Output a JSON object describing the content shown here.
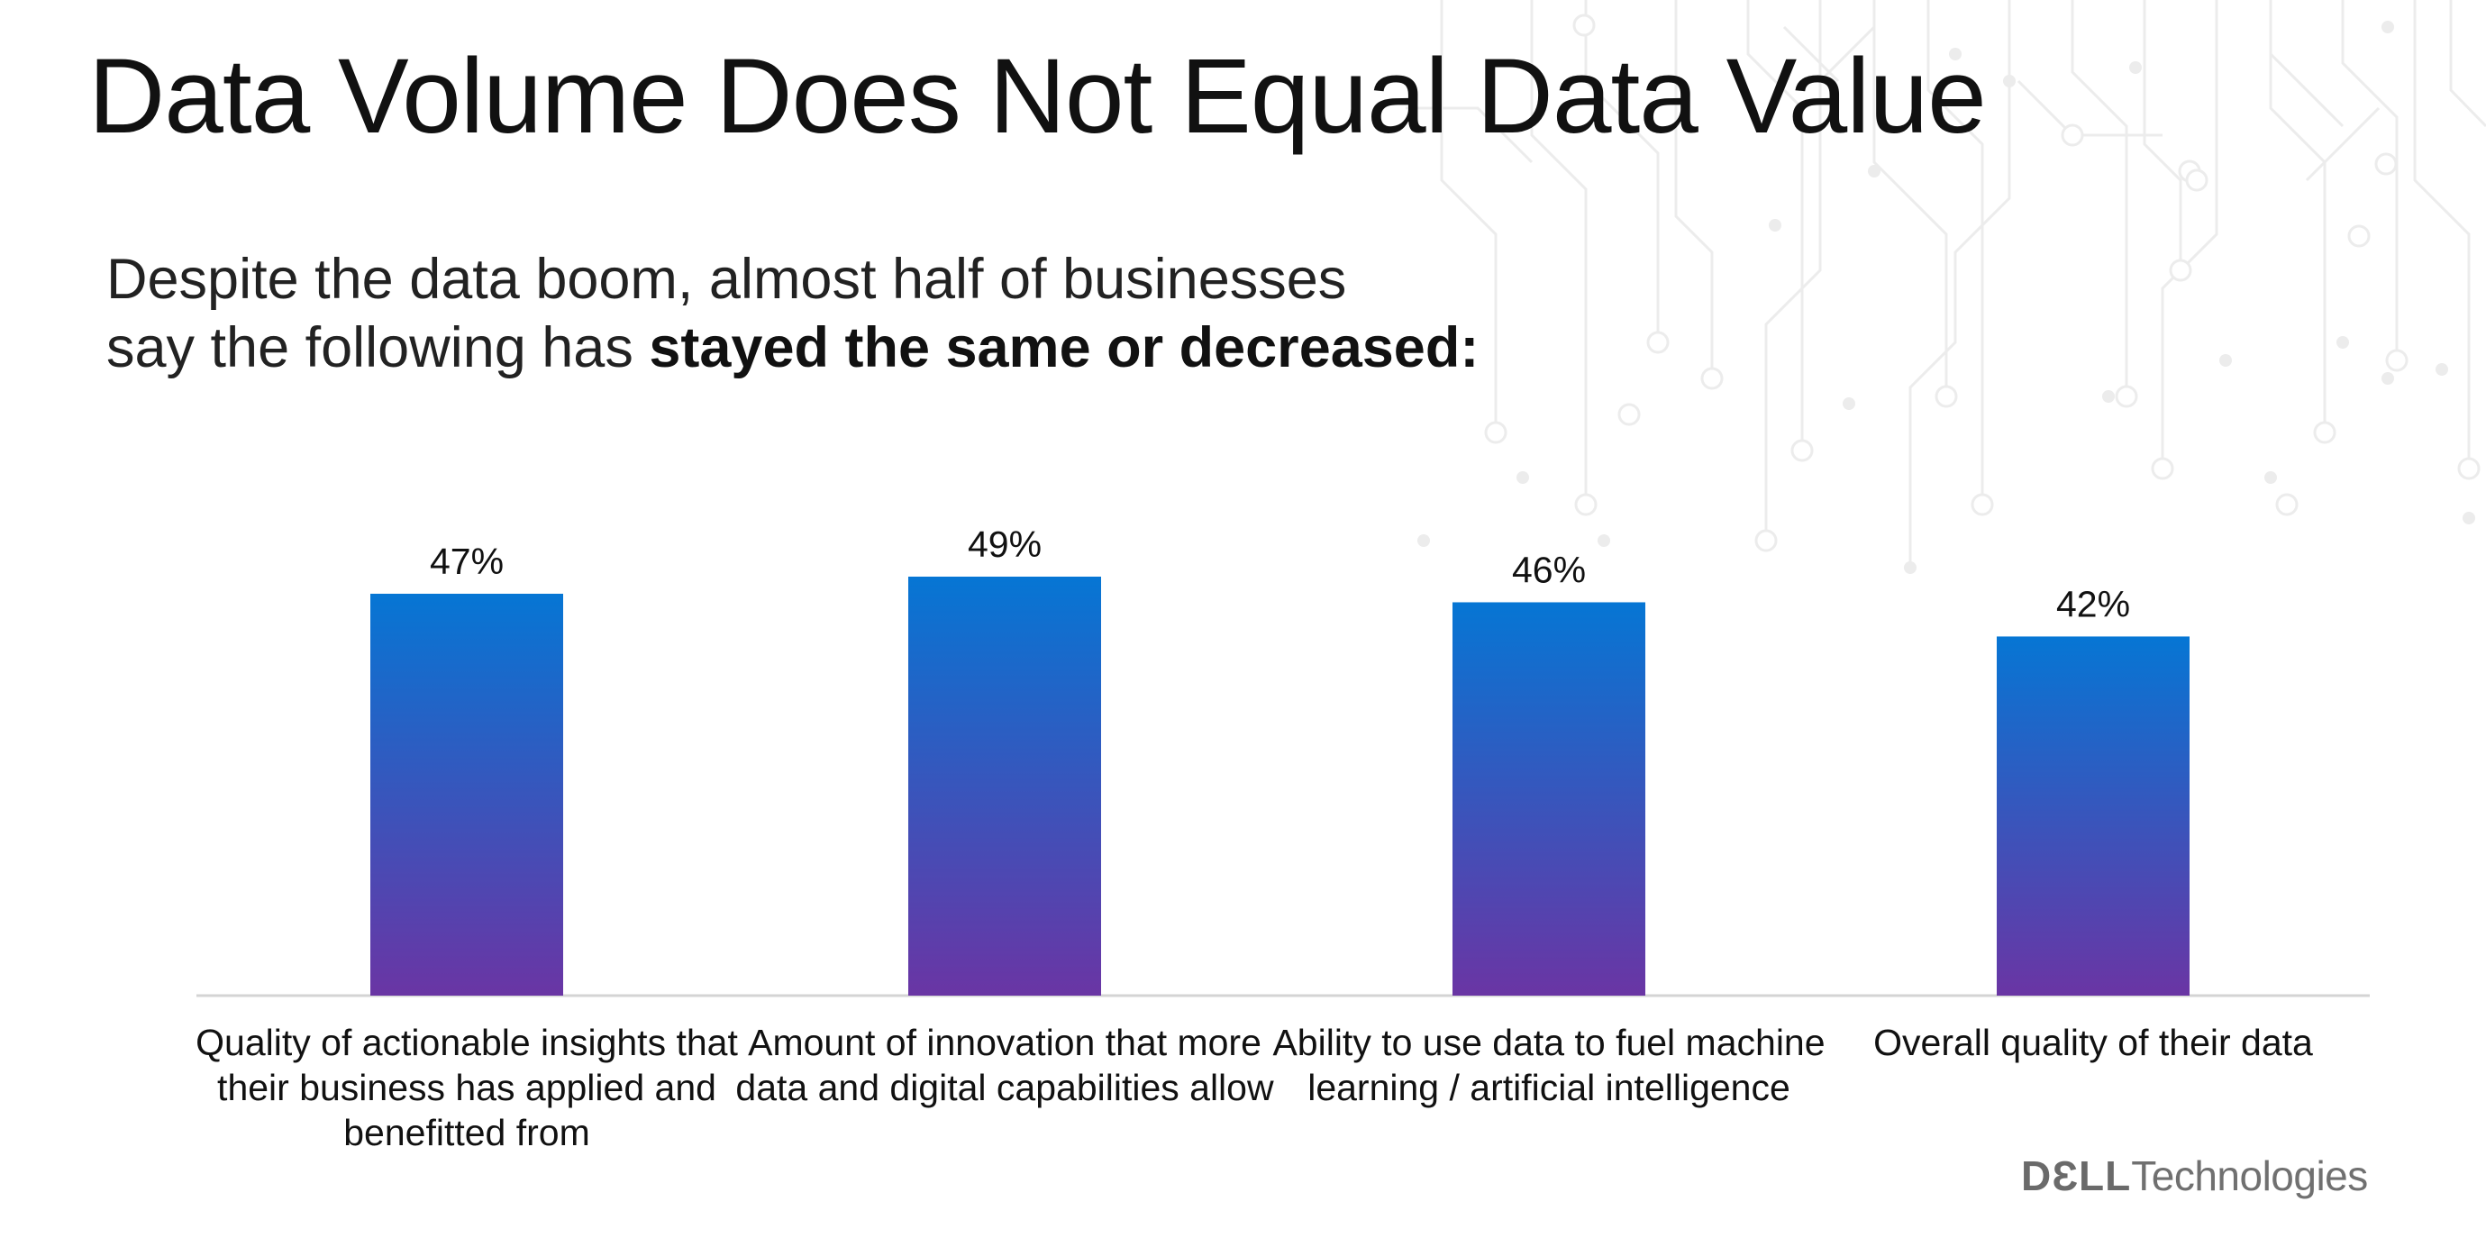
{
  "title": "Data Volume Does Not Equal Data Value",
  "subtitle": {
    "line1": "Despite the data boom, almost half of businesses",
    "line2_prefix": "say the following has ",
    "line2_emphasis": "stayed the same or decreased:"
  },
  "brand": {
    "mark": "DƐLL",
    "name": "Technologies"
  },
  "colors": {
    "bar_top": "#0676d4",
    "bar_bottom": "#6a35a4",
    "axis": "#d4d4d4",
    "circuit": "#ececec"
  },
  "chart_data": {
    "type": "bar",
    "categories": [
      "Quality of actionable insights that their business has applied and benefitted from",
      "Amount of innovation that more data and digital capabilities allow",
      "Ability to use data to fuel machine learning / artificial intelligence",
      "Overall quality of their data"
    ],
    "values": [
      47,
      49,
      46,
      42
    ],
    "data_labels": [
      "47%",
      "49%",
      "46%",
      "42%"
    ],
    "unit": "%",
    "title": "",
    "xlabel": "",
    "ylabel": "",
    "ylim": [
      0,
      49
    ],
    "grid": false,
    "legend": "none"
  }
}
